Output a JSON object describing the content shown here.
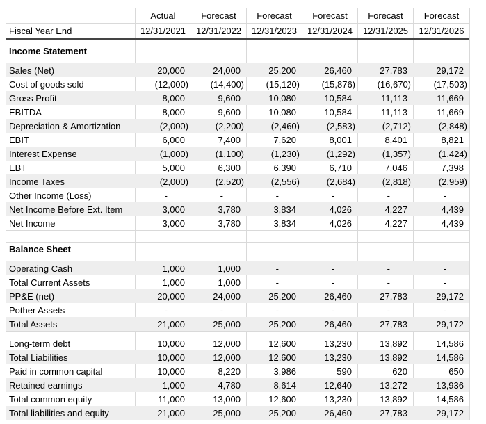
{
  "colors": {
    "stripe": "#eeeeee",
    "gridline": "#d9d9d9",
    "header_rule": "#444444"
  },
  "table": {
    "fiscal_year_label": "Fiscal Year End",
    "column_types": [
      "Actual",
      "Forecast",
      "Forecast",
      "Forecast",
      "Forecast",
      "Forecast"
    ],
    "fiscal_year_ends": [
      "12/31/2021",
      "12/31/2022",
      "12/31/2023",
      "12/31/2024",
      "12/31/2025",
      "12/31/2026"
    ],
    "rows": [
      {
        "type": "colhead"
      },
      {
        "type": "dates"
      },
      {
        "type": "spacer"
      },
      {
        "type": "section",
        "label": "Income Statement"
      },
      {
        "type": "spacer"
      },
      {
        "type": "data",
        "shade": true,
        "label": "Sales (Net)",
        "values": [
          "20,000",
          "24,000",
          "25,200",
          "26,460",
          "27,783",
          "29,172"
        ]
      },
      {
        "type": "data",
        "shade": false,
        "label": "Cost of goods sold",
        "values": [
          "(12,000)",
          "(14,400)",
          "(15,120)",
          "(15,876)",
          "(16,670)",
          "(17,503)"
        ]
      },
      {
        "type": "data",
        "shade": true,
        "label": "Gross Profit",
        "values": [
          "8,000",
          "9,600",
          "10,080",
          "10,584",
          "11,113",
          "11,669"
        ]
      },
      {
        "type": "data",
        "shade": false,
        "label": "EBITDA",
        "values": [
          "8,000",
          "9,600",
          "10,080",
          "10,584",
          "11,113",
          "11,669"
        ]
      },
      {
        "type": "data",
        "shade": true,
        "label": "Depreciation & Amortization",
        "values": [
          "(2,000)",
          "(2,200)",
          "(2,460)",
          "(2,583)",
          "(2,712)",
          "(2,848)"
        ]
      },
      {
        "type": "data",
        "shade": false,
        "label": "EBIT",
        "values": [
          "6,000",
          "7,400",
          "7,620",
          "8,001",
          "8,401",
          "8,821"
        ]
      },
      {
        "type": "data",
        "shade": true,
        "label": "Interest Expense",
        "values": [
          "(1,000)",
          "(1,100)",
          "(1,230)",
          "(1,292)",
          "(1,357)",
          "(1,424)"
        ]
      },
      {
        "type": "data",
        "shade": false,
        "label": "EBT",
        "values": [
          "5,000",
          "6,300",
          "6,390",
          "6,710",
          "7,046",
          "7,398"
        ]
      },
      {
        "type": "data",
        "shade": true,
        "label": "Income Taxes",
        "values": [
          "(2,000)",
          "(2,520)",
          "(2,556)",
          "(2,684)",
          "(2,818)",
          "(2,959)"
        ]
      },
      {
        "type": "data",
        "shade": false,
        "label": "Other Income (Loss)",
        "values": [
          "-",
          "-",
          "-",
          "-",
          "-",
          "-"
        ]
      },
      {
        "type": "data",
        "shade": true,
        "label": "Net Income Before Ext. Item",
        "values": [
          "3,000",
          "3,780",
          "3,834",
          "4,026",
          "4,227",
          "4,439"
        ]
      },
      {
        "type": "data",
        "shade": false,
        "label": "Net Income",
        "values": [
          "3,000",
          "3,780",
          "3,834",
          "4,026",
          "4,227",
          "4,439"
        ]
      },
      {
        "type": "blank"
      },
      {
        "type": "section",
        "label": "Balance Sheet"
      },
      {
        "type": "spacer"
      },
      {
        "type": "data",
        "shade": true,
        "label": "Operating Cash",
        "values": [
          "1,000",
          "1,000",
          "-",
          "-",
          "-",
          "-"
        ]
      },
      {
        "type": "data",
        "shade": false,
        "label": "Total Current Assets",
        "values": [
          "1,000",
          "1,000",
          "-",
          "-",
          "-",
          "-"
        ]
      },
      {
        "type": "data",
        "shade": true,
        "label": "PP&E (net)",
        "values": [
          "20,000",
          "24,000",
          "25,200",
          "26,460",
          "27,783",
          "29,172"
        ]
      },
      {
        "type": "data",
        "shade": false,
        "label": "Pother Assets",
        "values": [
          "-",
          "-",
          "-",
          "-",
          "-",
          "-"
        ]
      },
      {
        "type": "data",
        "shade": true,
        "label": "Total Assets",
        "values": [
          "21,000",
          "25,000",
          "25,200",
          "26,460",
          "27,783",
          "29,172"
        ]
      },
      {
        "type": "spacer2"
      },
      {
        "type": "data",
        "shade": false,
        "label": "Long-term debt",
        "values": [
          "10,000",
          "12,000",
          "12,600",
          "13,230",
          "13,892",
          "14,586"
        ]
      },
      {
        "type": "data",
        "shade": true,
        "label": "Total Liabilities",
        "values": [
          "10,000",
          "12,000",
          "12,600",
          "13,230",
          "13,892",
          "14,586"
        ]
      },
      {
        "type": "data",
        "shade": false,
        "label": "Paid in common capital",
        "values": [
          "10,000",
          "8,220",
          "3,986",
          "590",
          "620",
          "650"
        ]
      },
      {
        "type": "data",
        "shade": true,
        "label": "Retained earnings",
        "values": [
          "1,000",
          "4,780",
          "8,614",
          "12,640",
          "13,272",
          "13,936"
        ]
      },
      {
        "type": "data",
        "shade": false,
        "label": "Total common equity",
        "values": [
          "11,000",
          "13,000",
          "12,600",
          "13,230",
          "13,892",
          "14,586"
        ]
      },
      {
        "type": "data",
        "shade": true,
        "label": "Total liabilities and equity",
        "values": [
          "21,000",
          "25,000",
          "25,200",
          "26,460",
          "27,783",
          "29,172"
        ]
      }
    ]
  }
}
